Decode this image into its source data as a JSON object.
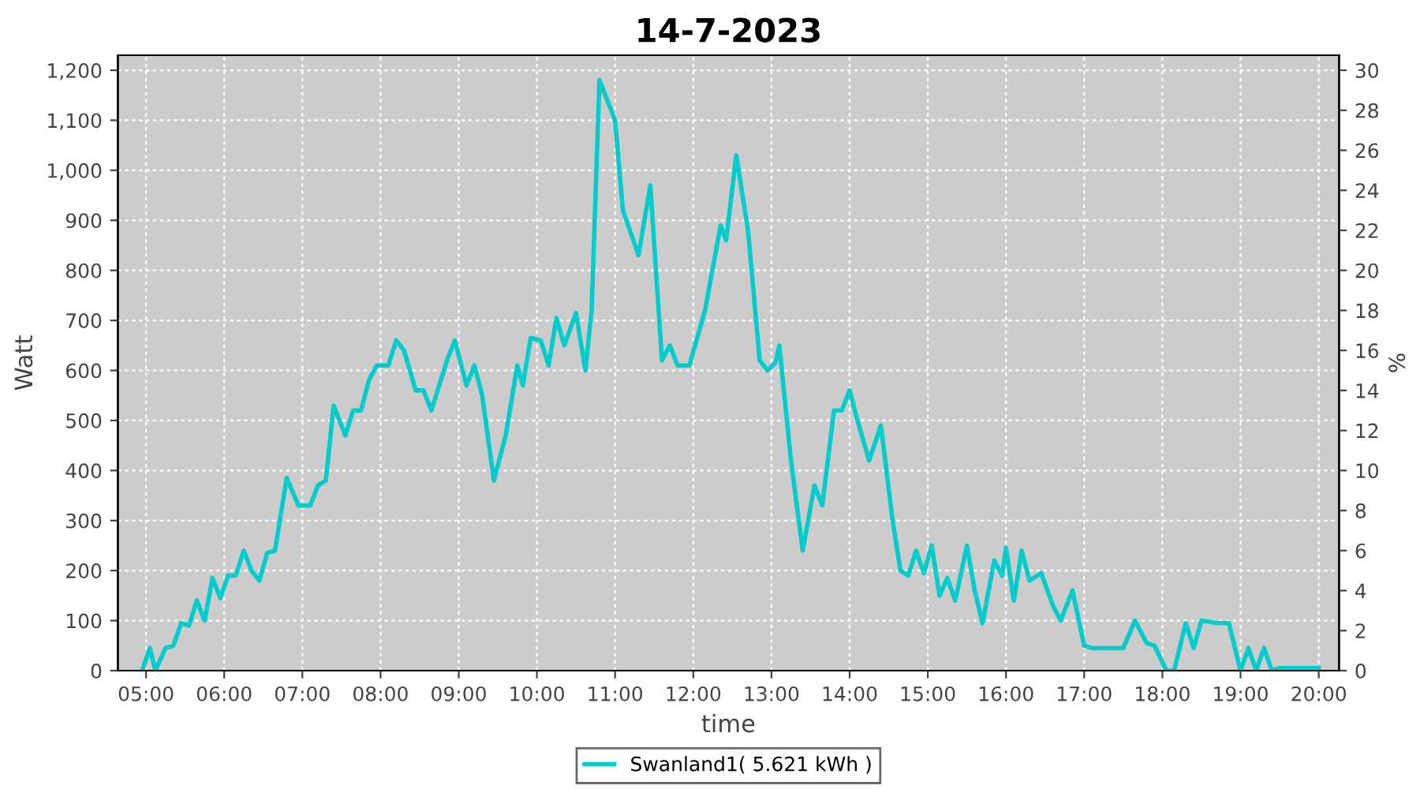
{
  "chart_data": {
    "type": "line",
    "title": "14-7-2023",
    "xlabel": "time",
    "ylabel": "Watt",
    "y2label": "%",
    "xlim": [
      4.64,
      20.26
    ],
    "ylim": [
      0,
      1230
    ],
    "y2lim": [
      0,
      30.75
    ],
    "xticks": [
      {
        "value": 5,
        "label": "05:00"
      },
      {
        "value": 6,
        "label": "06:00"
      },
      {
        "value": 7,
        "label": "07:00"
      },
      {
        "value": 8,
        "label": "08:00"
      },
      {
        "value": 9,
        "label": "09:00"
      },
      {
        "value": 10,
        "label": "10:00"
      },
      {
        "value": 11,
        "label": "11:00"
      },
      {
        "value": 12,
        "label": "12:00"
      },
      {
        "value": 13,
        "label": "13:00"
      },
      {
        "value": 14,
        "label": "14:00"
      },
      {
        "value": 15,
        "label": "15:00"
      },
      {
        "value": 16,
        "label": "16:00"
      },
      {
        "value": 17,
        "label": "17:00"
      },
      {
        "value": 18,
        "label": "18:00"
      },
      {
        "value": 19,
        "label": "19:00"
      },
      {
        "value": 20,
        "label": "20:00"
      }
    ],
    "yticks": [
      0,
      100,
      200,
      300,
      400,
      500,
      600,
      700,
      800,
      900,
      {
        "value": 1000,
        "label": "1,000"
      },
      {
        "value": 1100,
        "label": "1,100"
      },
      {
        "value": 1200,
        "label": "1,200"
      }
    ],
    "y2ticks": [
      0,
      2,
      4,
      6,
      8,
      10,
      12,
      14,
      16,
      18,
      20,
      22,
      24,
      26,
      28,
      30
    ],
    "grid": true,
    "legend": "bottom",
    "marker": "none",
    "line_style": "solid",
    "series": [
      {
        "name": "Swanland1( 5.621 kWh )",
        "color": "#00cccc",
        "x": [
          4.95,
          5.05,
          5.12,
          5.25,
          5.35,
          5.45,
          5.55,
          5.65,
          5.75,
          5.85,
          5.95,
          6.05,
          6.15,
          6.25,
          6.35,
          6.45,
          6.55,
          6.65,
          6.8,
          6.95,
          7.1,
          7.2,
          7.3,
          7.4,
          7.55,
          7.65,
          7.75,
          7.85,
          7.95,
          8.1,
          8.2,
          8.3,
          8.45,
          8.55,
          8.65,
          8.85,
          8.95,
          9.1,
          9.2,
          9.3,
          9.45,
          9.6,
          9.75,
          9.82,
          9.92,
          10.05,
          10.15,
          10.25,
          10.35,
          10.5,
          10.62,
          10.7,
          10.8,
          10.9,
          11.0,
          11.1,
          11.3,
          11.45,
          11.6,
          11.7,
          11.8,
          11.95,
          12.15,
          12.35,
          12.42,
          12.55,
          12.7,
          12.85,
          12.95,
          13.05,
          13.1,
          13.25,
          13.4,
          13.55,
          13.65,
          13.8,
          13.9,
          14.0,
          14.1,
          14.25,
          14.4,
          14.55,
          14.65,
          14.75,
          14.85,
          14.95,
          15.05,
          15.15,
          15.25,
          15.35,
          15.5,
          15.6,
          15.7,
          15.85,
          15.95,
          16.0,
          16.1,
          16.2,
          16.3,
          16.45,
          16.6,
          16.7,
          16.85,
          17.0,
          17.1,
          17.5,
          17.65,
          17.8,
          17.9,
          18.05,
          18.15,
          18.3,
          18.4,
          18.5,
          18.7,
          18.85,
          19.0,
          19.1,
          19.2,
          19.3,
          19.4,
          19.5,
          20.0
        ],
        "values": [
          0,
          45,
          0,
          45,
          50,
          95,
          90,
          140,
          100,
          185,
          145,
          190,
          190,
          240,
          200,
          180,
          235,
          240,
          385,
          330,
          330,
          370,
          380,
          530,
          470,
          520,
          520,
          580,
          610,
          610,
          660,
          640,
          560,
          560,
          520,
          620,
          660,
          570,
          610,
          550,
          380,
          470,
          610,
          570,
          665,
          660,
          610,
          705,
          650,
          715,
          600,
          720,
          1180,
          1140,
          1100,
          920,
          830,
          970,
          620,
          650,
          610,
          610,
          720,
          890,
          860,
          1030,
          880,
          620,
          600,
          615,
          650,
          420,
          240,
          370,
          330,
          520,
          520,
          560,
          500,
          420,
          490,
          300,
          200,
          190,
          240,
          195,
          250,
          150,
          185,
          140,
          250,
          160,
          95,
          220,
          190,
          245,
          140,
          240,
          180,
          195,
          130,
          100,
          160,
          50,
          45,
          45,
          100,
          55,
          50,
          0,
          0,
          95,
          45,
          100,
          95,
          95,
          0,
          45,
          0,
          45,
          0,
          5,
          5
        ]
      }
    ]
  }
}
